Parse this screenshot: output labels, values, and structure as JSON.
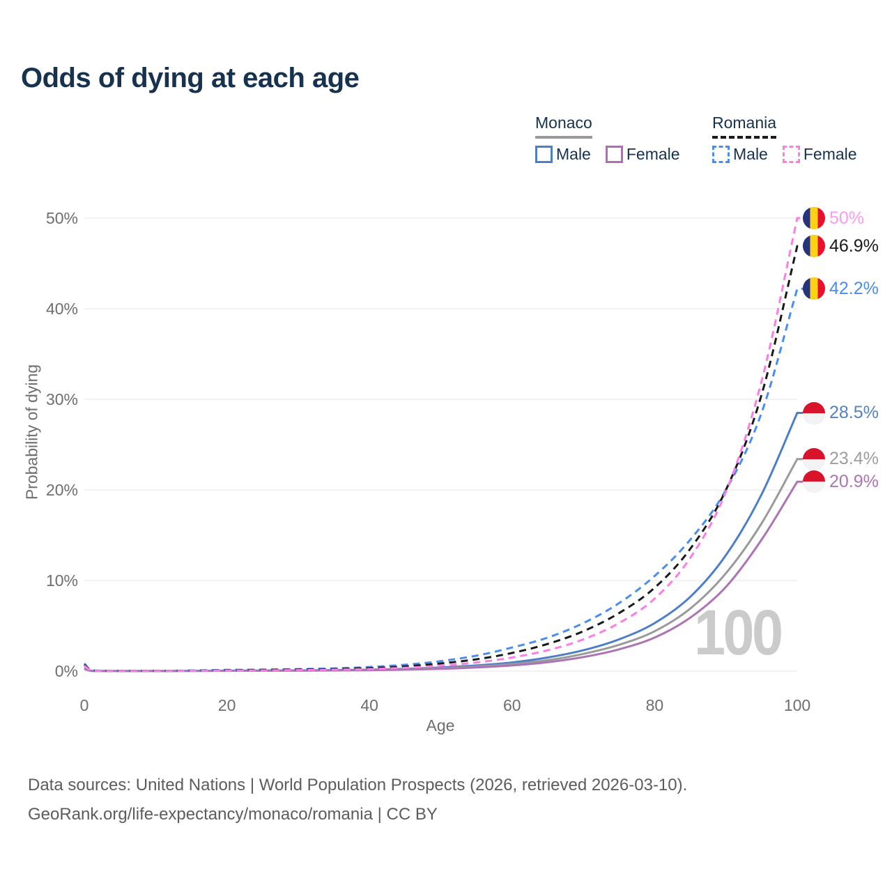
{
  "title": "Odds of dying at each age",
  "legend": {
    "groups": [
      {
        "name": "Monaco",
        "line_style": "solid",
        "underline_color": "#9a9a9a",
        "items": [
          {
            "label": "Male",
            "color": "#4d7ec8",
            "swatch_style": "solid"
          },
          {
            "label": "Female",
            "color": "#b06cb8",
            "swatch_style": "solid"
          }
        ]
      },
      {
        "name": "Romania",
        "line_style": "dashed",
        "underline_color": "#1a1a1a",
        "items": [
          {
            "label": "Male",
            "color": "#4a8df0",
            "swatch_style": "dashed"
          },
          {
            "label": "Female",
            "color": "#fb7de5",
            "swatch_style": "dashed"
          }
        ]
      }
    ]
  },
  "axes": {
    "y": {
      "title": "Probability of dying",
      "tick_labels": [
        "0%",
        "10%",
        "20%",
        "30%",
        "40%",
        "50%"
      ]
    },
    "x": {
      "title": "Age",
      "tick_labels": [
        "0",
        "20",
        "40",
        "60",
        "80",
        "100"
      ]
    }
  },
  "watermark": "100",
  "footer": {
    "line1": "Data sources: United Nations | World Population Prospects (2026, retrieved 2026-03-10).",
    "line2": "GeoRank.org/life-expectancy/monaco/romania | CC BY"
  },
  "flags": {
    "romania": {
      "type": "vertical-tricolor",
      "colors": [
        "#28337e",
        "#fcd116",
        "#e8112d"
      ]
    },
    "monaco": {
      "type": "horizontal-bicolor",
      "colors": [
        "#d8142c",
        "#f3f3f3"
      ]
    }
  },
  "chart_data": {
    "type": "line",
    "title": "Odds of dying at each age",
    "xlabel": "Age",
    "ylabel": "Probability of dying",
    "x_ticks": [
      0,
      20,
      40,
      60,
      80,
      100
    ],
    "y_ticks": [
      0,
      10,
      20,
      30,
      40,
      50
    ],
    "xlim": [
      0,
      100
    ],
    "ylim": [
      0,
      50
    ],
    "grid": "horizontal",
    "legend_position": "top-right",
    "unit": "%",
    "ages": [
      0,
      1,
      5,
      10,
      15,
      20,
      25,
      30,
      35,
      40,
      45,
      50,
      55,
      60,
      65,
      70,
      75,
      80,
      85,
      90,
      95,
      100
    ],
    "series": [
      {
        "name": "Monaco Male",
        "country": "Monaco",
        "sex": "Male",
        "style": "solid",
        "color": "#4d7ec8",
        "end_label": "28.5%",
        "label_color": "#5581c2",
        "flag": "monaco",
        "values": [
          0.3,
          0.03,
          0.01,
          0.01,
          0.03,
          0.05,
          0.06,
          0.08,
          0.11,
          0.16,
          0.25,
          0.4,
          0.62,
          0.95,
          1.5,
          2.3,
          3.5,
          5.3,
          8.2,
          12.8,
          19.5,
          28.5
        ]
      },
      {
        "name": "Monaco Both sexes",
        "country": "Monaco",
        "sex": "Both",
        "style": "solid",
        "color": "#9a9a9a",
        "end_label": "23.4%",
        "label_color": "#9e9e9e",
        "flag": "monaco",
        "values": [
          0.26,
          0.02,
          0.01,
          0.01,
          0.02,
          0.04,
          0.05,
          0.06,
          0.09,
          0.13,
          0.2,
          0.32,
          0.5,
          0.78,
          1.2,
          1.9,
          2.9,
          4.4,
          6.9,
          10.8,
          16.3,
          23.4
        ]
      },
      {
        "name": "Monaco Female",
        "country": "Monaco",
        "sex": "Female",
        "style": "solid",
        "color": "#ad74b5",
        "end_label": "20.9%",
        "label_color": "#ad74b5",
        "flag": "monaco",
        "values": [
          0.22,
          0.02,
          0.01,
          0.01,
          0.02,
          0.03,
          0.04,
          0.05,
          0.07,
          0.1,
          0.16,
          0.25,
          0.4,
          0.62,
          0.98,
          1.55,
          2.4,
          3.7,
          5.9,
          9.3,
          14.5,
          20.9
        ]
      },
      {
        "name": "Romania Male",
        "country": "Romania",
        "sex": "Male",
        "style": "dashed",
        "color": "#4a8df0",
        "end_label": "42.2%",
        "label_color": "#4a8df0",
        "flag": "romania",
        "values": [
          0.85,
          0.08,
          0.03,
          0.03,
          0.07,
          0.13,
          0.17,
          0.22,
          0.3,
          0.45,
          0.7,
          1.1,
          1.7,
          2.6,
          3.7,
          5.3,
          7.5,
          10.5,
          14.5,
          20.0,
          28.5,
          42.2
        ]
      },
      {
        "name": "Romania Both sexes",
        "country": "Romania",
        "sex": "Both",
        "style": "dashed",
        "color": "#1a1a1a",
        "end_label": "46.9%",
        "label_color": "#1a1a1a",
        "flag": "romania",
        "values": [
          0.7,
          0.06,
          0.02,
          0.02,
          0.05,
          0.09,
          0.12,
          0.16,
          0.22,
          0.33,
          0.52,
          0.85,
          1.3,
          2.0,
          3.0,
          4.4,
          6.4,
          9.2,
          13.5,
          20.0,
          30.5,
          46.9
        ]
      },
      {
        "name": "Romania Female",
        "country": "Romania",
        "sex": "Female",
        "style": "dashed",
        "color": "#fb7de5",
        "end_label": "50%",
        "label_color": "#fb9bee",
        "flag": "romania",
        "values": [
          0.6,
          0.05,
          0.02,
          0.02,
          0.04,
          0.06,
          0.08,
          0.11,
          0.15,
          0.22,
          0.36,
          0.6,
          0.95,
          1.5,
          2.3,
          3.5,
          5.3,
          8.0,
          12.5,
          19.8,
          32.0,
          50.0
        ]
      }
    ]
  }
}
